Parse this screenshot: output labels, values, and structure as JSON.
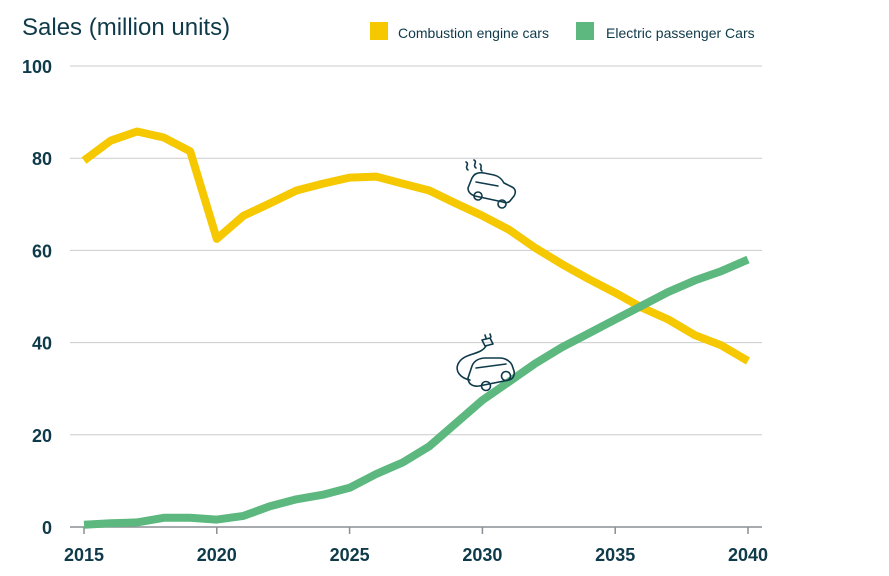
{
  "chart_data": {
    "type": "line",
    "title": "Sales (million units)",
    "ylabel": "Sales (million units)",
    "xlabel": "",
    "xlim": [
      2015,
      2040
    ],
    "ylim": [
      0,
      100
    ],
    "yticks": [
      "0",
      "20",
      "40",
      "60",
      "80",
      "100"
    ],
    "xticks": [
      "2015",
      "2020",
      "2025",
      "2030",
      "2035",
      "2040"
    ],
    "grid": true,
    "legend_position": "top-right",
    "series": [
      {
        "name": "Combustion engine cars",
        "color": "#f5c800",
        "icon": "combustion-car-icon",
        "x": [
          2015,
          2016,
          2017,
          2018,
          2019,
          2020,
          2021,
          2022,
          2023,
          2024,
          2025,
          2026,
          2027,
          2028,
          2029,
          2030,
          2031,
          2032,
          2033,
          2034,
          2035,
          2036,
          2037,
          2038,
          2039,
          2040
        ],
        "values": [
          79.5,
          83.8,
          85.8,
          84.5,
          81.5,
          62.5,
          67.5,
          70.2,
          73,
          74.5,
          75.8,
          76,
          74.5,
          73,
          70.2,
          67.5,
          64.5,
          60.5,
          57,
          53.8,
          50.8,
          47.6,
          45,
          41.6,
          39.4,
          36
        ]
      },
      {
        "name": "Electric passenger Cars",
        "color": "#5cb87e",
        "icon": "electric-car-icon",
        "x": [
          2015,
          2016,
          2017,
          2018,
          2019,
          2020,
          2021,
          2022,
          2023,
          2024,
          2025,
          2026,
          2027,
          2028,
          2029,
          2030,
          2031,
          2032,
          2033,
          2034,
          2035,
          2036,
          2037,
          2038,
          2039,
          2040
        ],
        "values": [
          0.5,
          0.8,
          1.0,
          2.0,
          2.0,
          1.6,
          2.4,
          4.5,
          6.0,
          7.0,
          8.5,
          11.5,
          14.0,
          17.5,
          22.5,
          27.5,
          31.5,
          35.5,
          39.0,
          42.0,
          45.0,
          48.0,
          51.0,
          53.5,
          55.5,
          58.0
        ]
      }
    ]
  }
}
